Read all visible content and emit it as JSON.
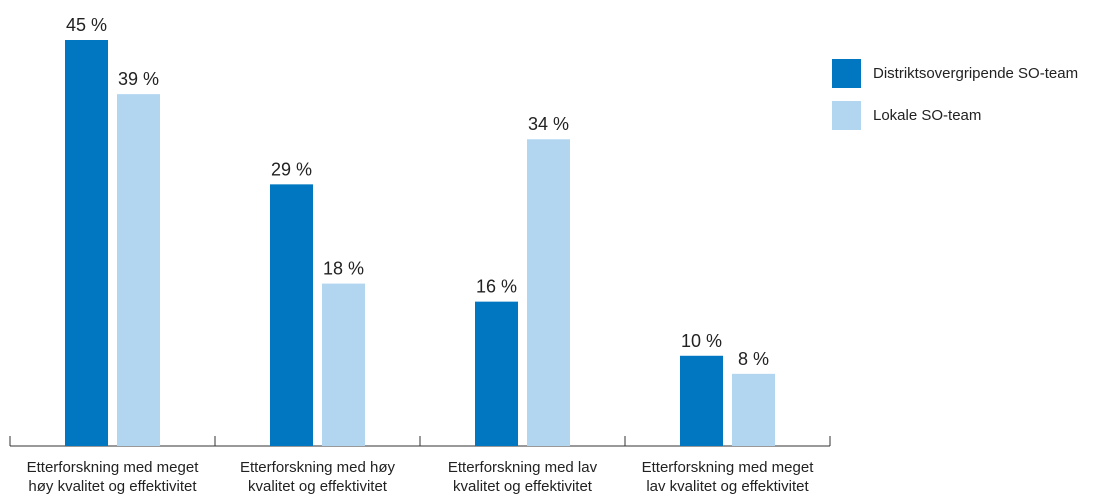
{
  "chart_data": {
    "type": "bar",
    "categories": [
      [
        "Etterforskning med meget",
        "høy kvalitet og effektivitet"
      ],
      [
        "Etterforskning med høy",
        "kvalitet og effektivitet"
      ],
      [
        "Etterforskning med lav",
        "kvalitet og effektivitet"
      ],
      [
        "Etterforskning med meget",
        "lav kvalitet og effektivitet"
      ]
    ],
    "series": [
      {
        "name": "Distriktsovergripende SO-team",
        "values": [
          45,
          29,
          16,
          10
        ],
        "labels": [
          "45 %",
          "29 %",
          "16 %",
          "10 %"
        ],
        "color": "#0077c0"
      },
      {
        "name": "Lokale SO-team",
        "values": [
          39,
          18,
          34,
          8
        ],
        "labels": [
          "39 %",
          "18 %",
          "34 %",
          "8 %"
        ],
        "color": "#b3d6f0"
      }
    ],
    "ylim": [
      0,
      45
    ],
    "grid": false,
    "legend_position": "top-right"
  }
}
